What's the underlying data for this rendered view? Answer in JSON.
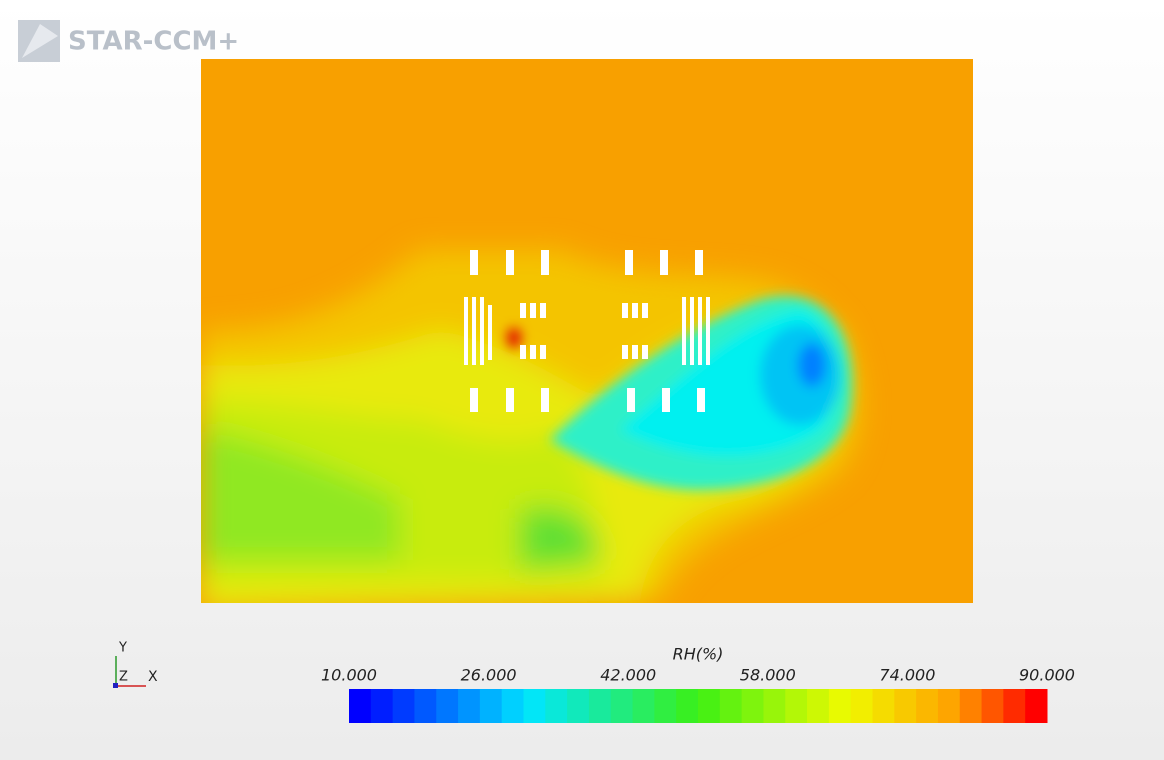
{
  "logo": "STAR-CCM+",
  "axes_triad": {
    "y": "Y",
    "z": "Z",
    "x": "X"
  },
  "colorbar": {
    "title": "RH(%)",
    "min": 10,
    "max": 90,
    "levels": 32,
    "ticks": [
      {
        "value": 10,
        "label": "10.000"
      },
      {
        "value": 26,
        "label": "26.000"
      },
      {
        "value": 42,
        "label": "42.000"
      },
      {
        "value": 58,
        "label": "58.000"
      },
      {
        "value": 74,
        "label": "74.000"
      },
      {
        "value": 90,
        "label": "90.000"
      }
    ]
  }
}
